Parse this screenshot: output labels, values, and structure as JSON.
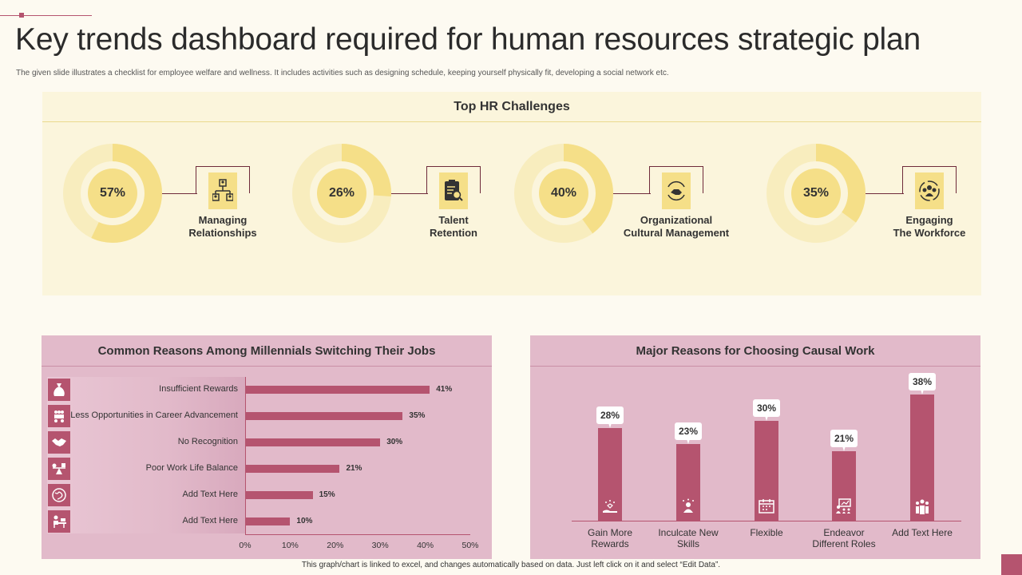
{
  "title": "Key trends dashboard required for human resources strategic plan",
  "subtitle": "The given slide illustrates a checklist for employee welfare and wellness. It includes activities such as designing schedule, keeping yourself physically fit, developing a social network etc.",
  "top_panel": {
    "heading": "Top HR Challenges",
    "challenges": [
      {
        "value": 57,
        "label": "57%",
        "line1": "Managing",
        "line2": "Relationships",
        "icon": "org-chart-icon"
      },
      {
        "value": 26,
        "label": "26%",
        "line1": "Talent",
        "line2": "Retention",
        "icon": "clipboard-search-icon"
      },
      {
        "value": 40,
        "label": "40%",
        "line1": "Organizational",
        "line2": "Cultural Management",
        "icon": "handshake-cycle-icon"
      },
      {
        "value": 35,
        "label": "35%",
        "line1": "Engaging",
        "line2": "The Workforce",
        "icon": "team-cycle-icon"
      }
    ]
  },
  "colors": {
    "accent": "#B5546F",
    "donut_fill": "#F5DF88",
    "donut_track": "#F8EDBE",
    "panel_pink": "#E2BACA"
  },
  "chart_data": [
    {
      "type": "bar",
      "orientation": "horizontal",
      "title": "Common Reasons Among Millennials Switching Their Jobs",
      "categories": [
        "Insufficient Rewards",
        "Less Opportunities in Career Advancement",
        "No Recognition",
        "Poor Work Life Balance",
        "Add Text Here",
        "Add Text Here"
      ],
      "values": [
        41,
        35,
        30,
        21,
        15,
        10
      ],
      "value_labels": [
        "41%",
        "35%",
        "30%",
        "21%",
        "15%",
        "10%"
      ],
      "icons": [
        "money-bag-icon",
        "meeting-icon",
        "handshake-icon",
        "balance-icon",
        "globe-icon",
        "desk-worker-icon"
      ],
      "xlim": [
        0,
        50
      ],
      "xticks": [
        "0%",
        "10%",
        "20%",
        "30%",
        "40%",
        "50%"
      ]
    },
    {
      "type": "bar",
      "orientation": "vertical",
      "title": "Major Reasons for Choosing Causal Work",
      "categories": [
        [
          "Gain More",
          "Rewards"
        ],
        [
          "Inculcate New",
          "Skills"
        ],
        [
          "Flexible",
          ""
        ],
        [
          "Endeavor",
          "Different Roles"
        ],
        [
          "Add Text Here",
          ""
        ]
      ],
      "values": [
        28,
        23,
        30,
        21,
        38
      ],
      "value_labels": [
        "28%",
        "23%",
        "30%",
        "21%",
        "38%"
      ],
      "icons": [
        "hand-stars-icon",
        "person-stars-icon",
        "calendar-icon",
        "presentation-icon",
        "group-icon"
      ],
      "ylim": [
        0,
        40
      ]
    }
  ],
  "footer": "This graph/chart is linked to excel, and changes automatically based on data. Just left click on it and select “Edit Data”."
}
